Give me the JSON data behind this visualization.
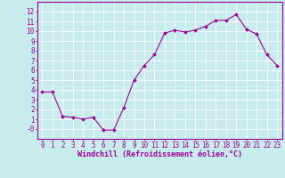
{
  "x": [
    0,
    1,
    2,
    3,
    4,
    5,
    6,
    7,
    8,
    9,
    10,
    11,
    12,
    13,
    14,
    15,
    16,
    17,
    18,
    19,
    20,
    21,
    22,
    23
  ],
  "y": [
    3.8,
    3.8,
    1.3,
    1.2,
    1.0,
    1.2,
    -0.1,
    -0.1,
    2.2,
    5.0,
    6.5,
    7.6,
    9.8,
    10.1,
    9.9,
    10.1,
    10.5,
    11.1,
    11.1,
    11.7,
    10.2,
    9.7,
    7.6,
    6.5
  ],
  "line_color": "#990099",
  "marker": "D",
  "marker_size": 2.0,
  "bg_color": "#c8ecec",
  "grid_color": "#ffffff",
  "xlabel": "Windchill (Refroidissement éolien,°C)",
  "xlim": [
    -0.5,
    23.5
  ],
  "ylim": [
    -1,
    13
  ],
  "yticks": [
    0,
    1,
    2,
    3,
    4,
    5,
    6,
    7,
    8,
    9,
    10,
    11,
    12
  ],
  "xticks": [
    0,
    1,
    2,
    3,
    4,
    5,
    6,
    7,
    8,
    9,
    10,
    11,
    12,
    13,
    14,
    15,
    16,
    17,
    18,
    19,
    20,
    21,
    22,
    23
  ],
  "tick_color": "#990099",
  "label_color": "#990099",
  "axis_color": "#990099",
  "font_size": 5.5,
  "xlabel_fontsize": 6.0,
  "linewidth": 0.8
}
